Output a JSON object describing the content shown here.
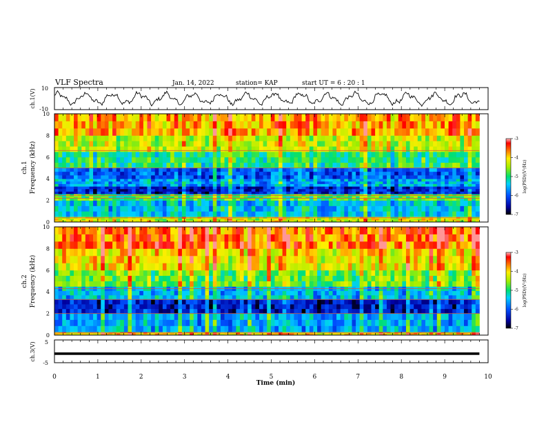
{
  "header": {
    "title": "VLF Spectra",
    "date": "Jan. 14, 2022",
    "station": "station= KAP",
    "start": "start UT =  6 : 20 : 1"
  },
  "chart_data": [
    {
      "type": "line",
      "panel": "ch1-waveform",
      "ylabel": "ch.1(V)",
      "ylim": [
        -10,
        10
      ],
      "yticks": [
        "10",
        "-10"
      ],
      "x_range_min": [
        0,
        9.8
      ],
      "description_values": "oscillating waveform, amplitude approx -7 to +7 V"
    },
    {
      "type": "heatmap",
      "panel": "ch1-spectrogram",
      "ylabel": "ch.1\nFrequency (kHz)",
      "ylim": [
        0,
        10
      ],
      "yticks": [
        "0",
        "2",
        "4",
        "6",
        "8",
        "10"
      ],
      "x_range_min": [
        0,
        9.8
      ],
      "colorbar": {
        "label": "log(PSD)(V²/Hz)",
        "range": [
          -7,
          -3
        ],
        "ticks": [
          "-3",
          "-4",
          "-5",
          "-6",
          "-7"
        ]
      },
      "bands_khz": [
        {
          "range": [
            0,
            0.5
          ],
          "level": -4.2
        },
        {
          "range": [
            0.5,
            2.0
          ],
          "level": -5.4
        },
        {
          "range": [
            2.0,
            2.6
          ],
          "level": -4.8
        },
        {
          "range": [
            2.6,
            3.3
          ],
          "level": -6.3
        },
        {
          "range": [
            3.3,
            4.0
          ],
          "level": -5.6
        },
        {
          "range": [
            4.0,
            5.0
          ],
          "level": -6.0
        },
        {
          "range": [
            5.0,
            6.5
          ],
          "level": -5.0
        },
        {
          "range": [
            6.5,
            8.0
          ],
          "level": -4.3
        },
        {
          "range": [
            8.0,
            10.0
          ],
          "level": -3.8
        }
      ]
    },
    {
      "type": "heatmap",
      "panel": "ch2-spectrogram",
      "ylabel": "ch.2\nFrequency (kHz)",
      "ylim": [
        0,
        10
      ],
      "yticks": [
        "0",
        "2",
        "4",
        "6",
        "8",
        "10"
      ],
      "x_range_min": [
        0,
        9.8
      ],
      "colorbar": {
        "label": "log(PSD)(V²/Hz)",
        "range": [
          -7,
          -3
        ],
        "ticks": [
          "-3",
          "-4",
          "-5",
          "-6",
          "-7"
        ]
      },
      "bands_khz": [
        {
          "range": [
            0,
            0.3
          ],
          "level": -4.0
        },
        {
          "range": [
            0.3,
            2.0
          ],
          "level": -5.6
        },
        {
          "range": [
            2.0,
            3.3
          ],
          "level": -6.4
        },
        {
          "range": [
            3.3,
            4.5
          ],
          "level": -5.5
        },
        {
          "range": [
            4.5,
            6.0
          ],
          "level": -4.7
        },
        {
          "range": [
            6.0,
            8.0
          ],
          "level": -4.1
        },
        {
          "range": [
            8.0,
            10.0
          ],
          "level": -3.6
        }
      ]
    },
    {
      "type": "line",
      "panel": "ch3-waveform",
      "ylabel": "ch.3(V)",
      "ylim": [
        -5,
        5
      ],
      "yticks": [
        "5",
        "-5"
      ],
      "x_range_min": [
        0,
        9.8
      ],
      "description_values": "flat band centred near -1 V"
    }
  ],
  "x_axis": {
    "label": "Time (min)",
    "ticks": [
      "0",
      "1",
      "2",
      "3",
      "4",
      "5",
      "6",
      "7",
      "8",
      "9",
      "10"
    ],
    "xlim": [
      0,
      10
    ]
  }
}
